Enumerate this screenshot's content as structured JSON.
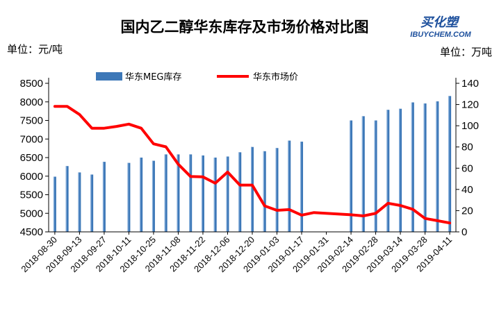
{
  "header": {
    "title": "国内乙二醇华东库存及市场价格对比图",
    "unit_left": "单位：元/吨",
    "unit_right": "单位：万吨",
    "brand_top": "买化塑",
    "brand_bottom": "IBUYCHEM.COM"
  },
  "colors": {
    "bars": "#3d78b8",
    "bars_light": "#8fb4de",
    "line": "#ff0000",
    "text": "#000000",
    "axis": "#000000",
    "brand": "#1c4f9c"
  },
  "chart_data": {
    "type": "bar",
    "title": "国内乙二醇华东库存及市场价格对比图",
    "legend_position": "top",
    "grid": false,
    "x_tick_labels": [
      "2018-08-30",
      "2018-09-13",
      "2018-09-27",
      "2018-10-11",
      "2018-10-25",
      "2018-11-08",
      "2018-11-22",
      "2018-12-06",
      "2018-12-20",
      "2019-01-03",
      "2019-01-17",
      "2019-01-31",
      "2019-02-14",
      "2019-02-28",
      "2019-03-14",
      "2019-03-28",
      "2019-04-11"
    ],
    "left_axis": {
      "unit": "元/吨",
      "min": 4500,
      "max": 8500,
      "ticks": [
        4500,
        5000,
        5500,
        6000,
        6500,
        7000,
        7500,
        8000,
        8500
      ]
    },
    "right_axis": {
      "unit": "万吨",
      "min": 0,
      "max": 140,
      "ticks": [
        0,
        20,
        40,
        60,
        80,
        100,
        120,
        140
      ]
    },
    "series": [
      {
        "name": "华东MEG库存",
        "type": "bar",
        "axis": "right",
        "points": [
          {
            "week": 0,
            "value": 52
          },
          {
            "week": 1,
            "value": 62
          },
          {
            "week": 2,
            "value": 56
          },
          {
            "week": 3,
            "value": 54
          },
          {
            "week": 4,
            "value": 66
          },
          {
            "week": 6,
            "value": 65
          },
          {
            "week": 7,
            "value": 70
          },
          {
            "week": 8,
            "value": 67
          },
          {
            "week": 9,
            "value": 73
          },
          {
            "week": 10,
            "value": 73
          },
          {
            "week": 11,
            "value": 73
          },
          {
            "week": 12,
            "value": 72
          },
          {
            "week": 13,
            "value": 70
          },
          {
            "week": 14,
            "value": 71
          },
          {
            "week": 15,
            "value": 75
          },
          {
            "week": 16,
            "value": 80
          },
          {
            "week": 17,
            "value": 76
          },
          {
            "week": 18,
            "value": 79
          },
          {
            "week": 19,
            "value": 86
          },
          {
            "week": 20,
            "value": 85
          },
          {
            "week": 24,
            "value": 105
          },
          {
            "week": 25,
            "value": 109
          },
          {
            "week": 26,
            "value": 105
          },
          {
            "week": 27,
            "value": 115
          },
          {
            "week": 28,
            "value": 116
          },
          {
            "week": 29,
            "value": 122
          },
          {
            "week": 30,
            "value": 121
          },
          {
            "week": 31,
            "value": 123
          },
          {
            "week": 32,
            "value": 128
          }
        ]
      },
      {
        "name": "华东市场价",
        "type": "line",
        "axis": "left",
        "points": [
          {
            "week": 0,
            "value": 7880
          },
          {
            "week": 1,
            "value": 7880
          },
          {
            "week": 2,
            "value": 7660
          },
          {
            "week": 3,
            "value": 7290
          },
          {
            "week": 4,
            "value": 7290
          },
          {
            "week": 5,
            "value": 7340
          },
          {
            "week": 6,
            "value": 7400
          },
          {
            "week": 7,
            "value": 7290
          },
          {
            "week": 8,
            "value": 6870
          },
          {
            "week": 9,
            "value": 6790
          },
          {
            "week": 10,
            "value": 6320
          },
          {
            "week": 11,
            "value": 5990
          },
          {
            "week": 12,
            "value": 5980
          },
          {
            "week": 13,
            "value": 5810
          },
          {
            "week": 14,
            "value": 6110
          },
          {
            "week": 15,
            "value": 5760
          },
          {
            "week": 16,
            "value": 5760
          },
          {
            "week": 17,
            "value": 5200
          },
          {
            "week": 18,
            "value": 5080
          },
          {
            "week": 19,
            "value": 5100
          },
          {
            "week": 20,
            "value": 4950
          },
          {
            "week": 21,
            "value": 5020
          },
          {
            "week": 24,
            "value": 4960
          },
          {
            "week": 25,
            "value": 4930
          },
          {
            "week": 26,
            "value": 5000
          },
          {
            "week": 27,
            "value": 5270
          },
          {
            "week": 28,
            "value": 5210
          },
          {
            "week": 29,
            "value": 5110
          },
          {
            "week": 30,
            "value": 4860
          },
          {
            "week": 31,
            "value": 4800
          },
          {
            "week": 32,
            "value": 4740
          }
        ]
      }
    ]
  }
}
